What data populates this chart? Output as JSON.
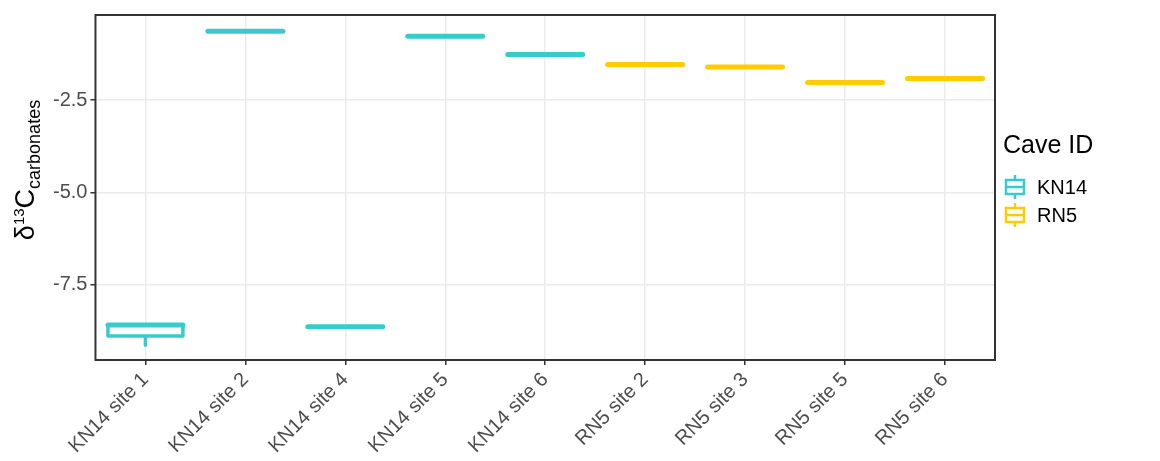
{
  "chart_data": {
    "type": "box",
    "ylabel": "δ$^{13}$C$_{carbonates}$",
    "legend_title": "Cave ID",
    "legend": "right",
    "categories": [
      "KN14 site 1",
      "KN14 site 2",
      "KN14 site 4",
      "KN14 site 5",
      "KN14 site 6",
      "RN5 site 2",
      "RN5 site 3",
      "RN5 site 5",
      "RN5 site 6"
    ],
    "ylim": [
      -9.55,
      -0.19
    ],
    "yticks": [
      -7.5,
      {
        "value": -5,
        "label": "-5.0"
      },
      -2.5
    ],
    "grid": true,
    "series": [
      {
        "name": "KN14",
        "color": "#36cccc",
        "boxes": [
          {
            "low": -9.15,
            "q1": -8.9,
            "median": -8.6,
            "q3": -8.6,
            "high": -8.6
          },
          {
            "low": -0.63,
            "q1": -0.63,
            "median": -0.63,
            "q3": -0.63,
            "high": -0.63
          },
          {
            "low": -8.65,
            "q1": -8.65,
            "median": -8.65,
            "q3": -8.65,
            "high": -8.65
          },
          {
            "low": -0.77,
            "q1": -0.77,
            "median": -0.77,
            "q3": -0.77,
            "high": -0.77
          },
          {
            "low": -1.26,
            "q1": -1.26,
            "median": -1.26,
            "q3": -1.26,
            "high": -1.26
          },
          null,
          null,
          null,
          null
        ]
      },
      {
        "name": "RN5",
        "color": "#ffcc00",
        "boxes": [
          null,
          null,
          null,
          null,
          null,
          {
            "low": -1.53,
            "q1": -1.53,
            "median": -1.53,
            "q3": -1.53,
            "high": -1.53
          },
          {
            "low": -1.6,
            "q1": -1.6,
            "median": -1.6,
            "q3": -1.6,
            "high": -1.6
          },
          {
            "low": -2.02,
            "q1": -2.02,
            "median": -2.02,
            "q3": -2.02,
            "high": -2.02
          },
          {
            "low": -1.91,
            "q1": -1.91,
            "median": -1.91,
            "q3": -1.91,
            "high": -1.91
          }
        ]
      }
    ]
  }
}
